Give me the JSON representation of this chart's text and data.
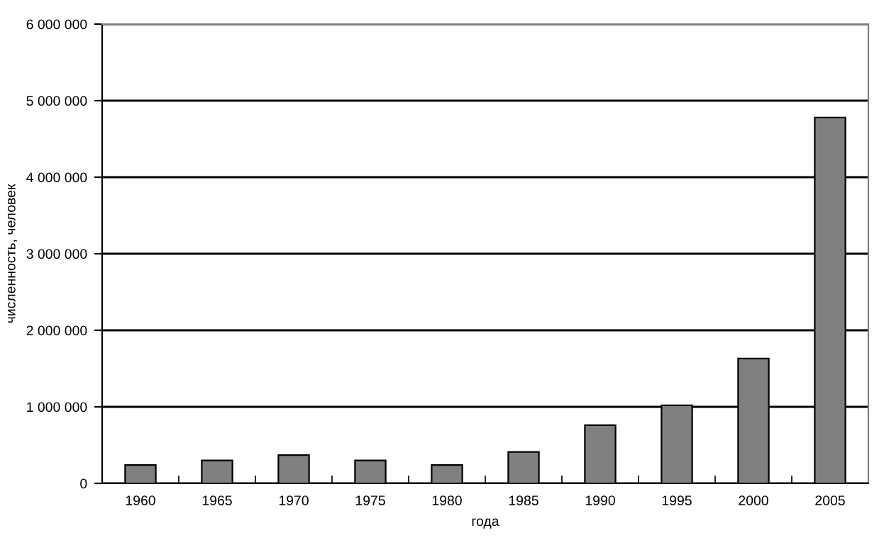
{
  "chart_data": {
    "type": "bar",
    "xlabel": "года",
    "ylabel": "численность, человек",
    "categories": [
      "1960",
      "1965",
      "1970",
      "1975",
      "1980",
      "1985",
      "1990",
      "1995",
      "2000",
      "2005"
    ],
    "values": [
      240000,
      300000,
      370000,
      300000,
      240000,
      410000,
      760000,
      1020000,
      1630000,
      4780000
    ],
    "color": "#808080",
    "ylim": [
      0,
      6000000
    ],
    "yticks": [
      {
        "value": 0,
        "label": "0"
      },
      {
        "value": 1000000,
        "label": "1 000 000"
      },
      {
        "value": 2000000,
        "label": "2 000 000"
      },
      {
        "value": 3000000,
        "label": "3 000 000"
      },
      {
        "value": 4000000,
        "label": "4 000 000"
      },
      {
        "value": 5000000,
        "label": "5 000 000"
      },
      {
        "value": 6000000,
        "label": "6 000 000"
      }
    ],
    "grid": "y"
  }
}
